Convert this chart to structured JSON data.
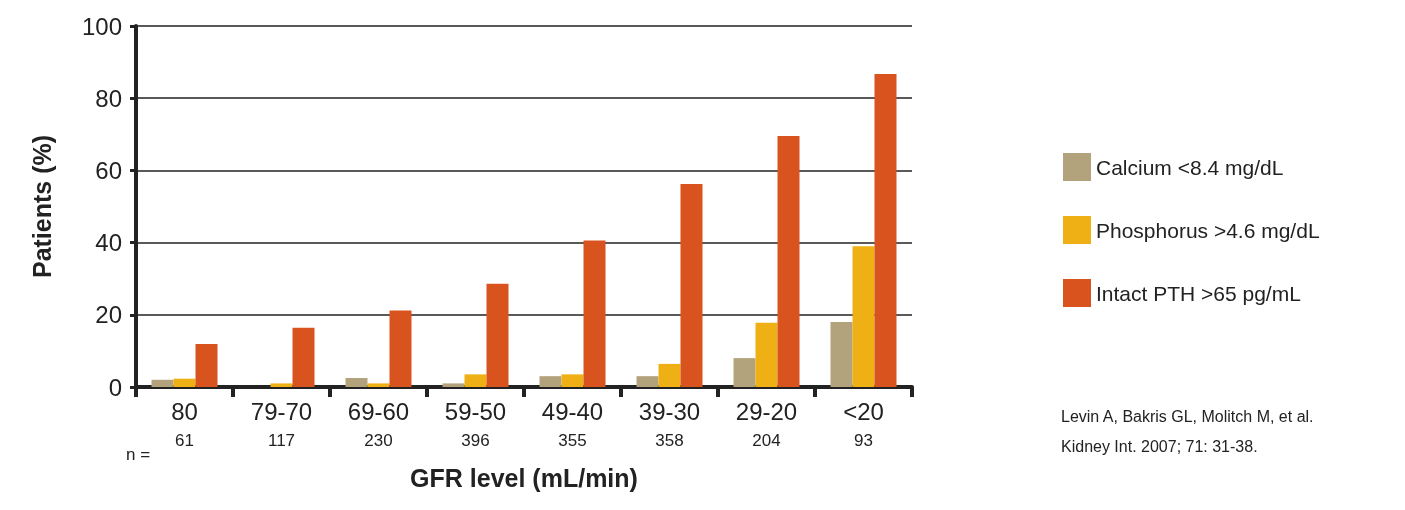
{
  "chart_data": {
    "type": "bar",
    "xlabel": "GFR level (mL/min)",
    "ylabel": "Patients (%)",
    "categories": [
      "80\n61",
      "79-70\n117",
      "69-60\n230",
      "59-50\n396",
      "49-40\n355",
      "39-30\n358",
      "29-20\n204",
      "<20\n93"
    ],
    "series": [
      {
        "name": "Calcium <8.4 mg/dL",
        "color": "#b3a37c",
        "values": [
          2,
          0,
          2.5,
          1,
          3,
          3,
          8,
          18
        ]
      },
      {
        "name": "Phosphorus >4.6 mg/dL",
        "color": "#efb016",
        "values": [
          2.3,
          1,
          1,
          3.5,
          3.5,
          6.4,
          17.8,
          39
        ]
      },
      {
        "name": "Intact PTH >65 pg/mL",
        "color": "#d9531e",
        "values": [
          11.9,
          16.4,
          21.2,
          28.6,
          40.6,
          56.2,
          69.5,
          86.7
        ]
      }
    ],
    "ylim": [
      0,
      100
    ],
    "yticks": [
      0,
      20,
      40,
      60,
      80,
      100
    ],
    "grid": "y",
    "legend": "right",
    "annotations": [
      "n =",
      "Levin A, Bakris GL, Molitch M, et al.",
      "Kidney Int. 2007; 71: 31-38."
    ]
  }
}
